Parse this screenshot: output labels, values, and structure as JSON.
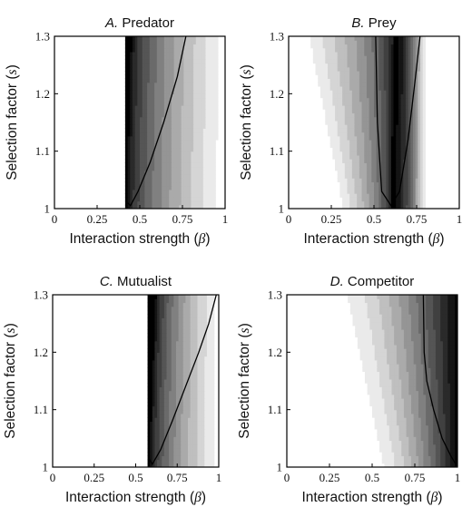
{
  "chart_data": [
    {
      "type": "heatmap",
      "panel_letter": "A.",
      "title": "Predator",
      "xlabel": "Interaction strength (",
      "xlabel_sym": "β",
      "xlabel_close": ")",
      "ylabel": "Selection factor (",
      "ylabel_sym": "s",
      "ylabel_close": ")",
      "xlim": [
        0,
        1
      ],
      "ylim": [
        1,
        1.3
      ],
      "x_ticks": [
        0,
        0.25,
        0.5,
        0.75,
        1
      ],
      "x_tick_labels": [
        "0",
        "0.25",
        "0.5",
        "0.75",
        "1"
      ],
      "y_ticks": [
        1,
        1.1,
        1.2,
        1.3
      ],
      "y_tick_labels": [
        "1",
        "1.1",
        "1.2",
        "1.3"
      ],
      "colormap": "white-to-black",
      "region": {
        "left_edge": 0.41,
        "right_edge_at_1": 0.98,
        "right_edge_at_13": 1.0
      },
      "peak_beta_at_1": 0.42,
      "peak_beta_at_13": 0.45,
      "contour": {
        "x": [
          0.43,
          0.445,
          0.49,
          0.56,
          0.64,
          0.72,
          0.77
        ],
        "y": [
          1.01,
          1.005,
          1.03,
          1.08,
          1.15,
          1.23,
          1.3
        ]
      }
    },
    {
      "type": "heatmap",
      "panel_letter": "B.",
      "title": "Prey",
      "xlabel": "Interaction strength (",
      "xlabel_sym": "β",
      "xlabel_close": ")",
      "ylabel": "Selection factor (",
      "ylabel_sym": "s",
      "ylabel_close": ")",
      "xlim": [
        0,
        1
      ],
      "ylim": [
        1,
        1.3
      ],
      "x_ticks": [
        0,
        0.25,
        0.5,
        0.75,
        1
      ],
      "x_tick_labels": [
        "0",
        "0.25",
        "0.5",
        "0.75",
        "1"
      ],
      "y_ticks": [
        1,
        1.1,
        1.2,
        1.3
      ],
      "y_tick_labels": [
        "1",
        "1.1",
        "1.2",
        "1.3"
      ],
      "colormap": "white-to-black",
      "region": {
        "left_edge_at_1": 0.3,
        "left_edge_at_13": 0.08,
        "right_edge": 0.8
      },
      "peak_beta_at_1": 0.6,
      "peak_beta_at_13": 0.62,
      "contour": {
        "x": [
          0.51,
          0.52,
          0.545,
          0.6,
          0.65,
          0.7,
          0.74,
          0.77
        ],
        "y": [
          1.3,
          1.15,
          1.03,
          1.005,
          1.03,
          1.12,
          1.22,
          1.3
        ]
      }
    },
    {
      "type": "heatmap",
      "panel_letter": "C.",
      "title": "Mutualist",
      "xlabel": "Interaction strength (",
      "xlabel_sym": "β",
      "xlabel_close": ")",
      "ylabel": "Selection factor (",
      "ylabel_sym": "s",
      "ylabel_close": ")",
      "xlim": [
        0,
        1
      ],
      "ylim": [
        1,
        1.3
      ],
      "x_ticks": [
        0,
        0.25,
        0.5,
        0.75,
        1
      ],
      "x_tick_labels": [
        "0",
        "0.25",
        "0.5",
        "0.75",
        "1"
      ],
      "y_ticks": [
        1,
        1.1,
        1.2,
        1.3
      ],
      "y_tick_labels": [
        "1",
        "1.1",
        "1.2",
        "1.3"
      ],
      "colormap": "white-to-black",
      "region": {
        "left_edge": 0.57,
        "right_edge_at_1": 1.0,
        "right_edge_at_13": 1.0
      },
      "peak_beta_at_1": 0.58,
      "peak_beta_at_13": 0.62,
      "contour": {
        "x": [
          0.58,
          0.6,
          0.65,
          0.72,
          0.8,
          0.88,
          0.94,
          0.985
        ],
        "y": [
          1.015,
          1.005,
          1.03,
          1.08,
          1.14,
          1.2,
          1.25,
          1.3
        ]
      }
    },
    {
      "type": "heatmap",
      "panel_letter": "D.",
      "title": "Competitor",
      "xlabel": "Interaction strength (",
      "xlabel_sym": "β",
      "xlabel_close": ")",
      "ylabel": "Selection factor (",
      "ylabel_sym": "s",
      "ylabel_close": ")",
      "xlim": [
        0,
        1
      ],
      "ylim": [
        1,
        1.3
      ],
      "x_ticks": [
        0,
        0.25,
        0.5,
        0.75,
        1
      ],
      "x_tick_labels": [
        "0",
        "0.25",
        "0.5",
        "0.75",
        "1"
      ],
      "y_ticks": [
        1,
        1.1,
        1.2,
        1.3
      ],
      "y_tick_labels": [
        "1",
        "1.1",
        "1.2",
        "1.3"
      ],
      "colormap": "white-to-black",
      "region": {
        "left_edge_at_1": 0.5,
        "left_edge_at_13": 0.25,
        "right_edge": 1.0
      },
      "peak_beta_at_1": 1.0,
      "peak_beta_at_13": 1.0,
      "contour": {
        "x": [
          0.8,
          0.805,
          0.82,
          0.86,
          0.91,
          0.96,
          0.99
        ],
        "y": [
          1.3,
          1.2,
          1.15,
          1.1,
          1.05,
          1.02,
          1.005
        ]
      }
    }
  ]
}
